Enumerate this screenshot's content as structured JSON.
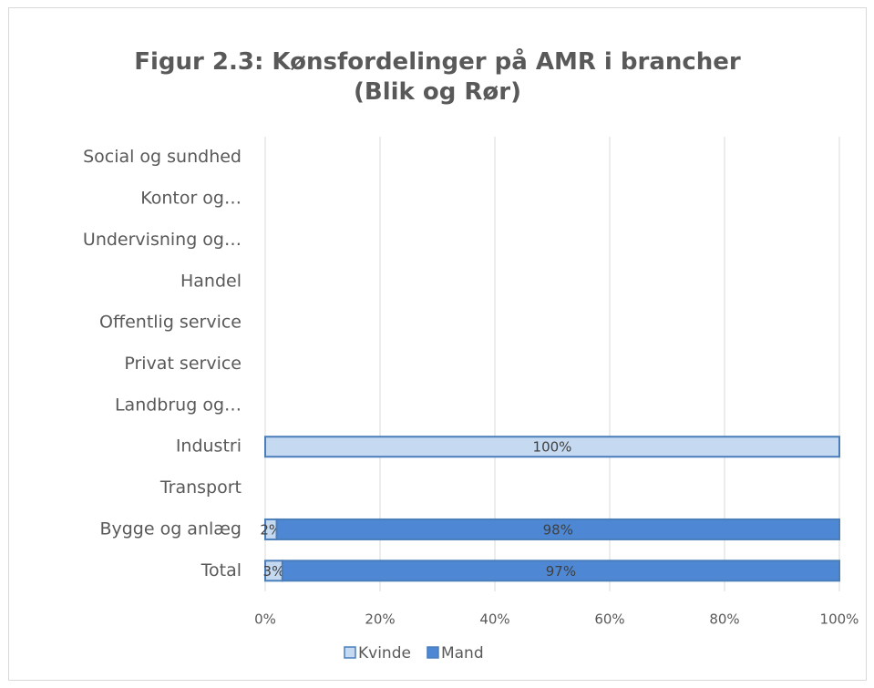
{
  "chart_data": {
    "type": "stacked_bar_horizontal",
    "title": "Figur 2.3: Kønsfordelinger på AMR i brancher (Blik og Rør)",
    "categories": [
      "Social og sundhed",
      "Kontor og…",
      "Undervisning og…",
      "Handel",
      "Offentlig service",
      "Privat service",
      "Landbrug og…",
      "Industri",
      "Transport",
      "Bygge og anlæg",
      "Total"
    ],
    "series": [
      {
        "name": "Kvinde",
        "color": "#c5d9f1",
        "values": [
          null,
          null,
          null,
          null,
          null,
          null,
          null,
          100,
          null,
          2,
          3
        ],
        "value_labels": [
          null,
          null,
          null,
          null,
          null,
          null,
          null,
          "100%",
          null,
          "2%",
          "3%"
        ]
      },
      {
        "name": "Mand",
        "color": "#4e88d4",
        "values": [
          null,
          null,
          null,
          null,
          null,
          null,
          null,
          null,
          null,
          98,
          97
        ],
        "value_labels": [
          null,
          null,
          null,
          null,
          null,
          null,
          null,
          null,
          null,
          "98%",
          "97%"
        ]
      }
    ],
    "xlim": [
      0,
      100
    ],
    "xticks": [
      {
        "value": 0,
        "label": "0%"
      },
      {
        "value": 20,
        "label": "20%"
      },
      {
        "value": 40,
        "label": "40%"
      },
      {
        "value": 60,
        "label": "60%"
      },
      {
        "value": 80,
        "label": "80%"
      },
      {
        "value": 100,
        "label": "100%"
      }
    ],
    "grid": true,
    "legend": "bottom"
  }
}
